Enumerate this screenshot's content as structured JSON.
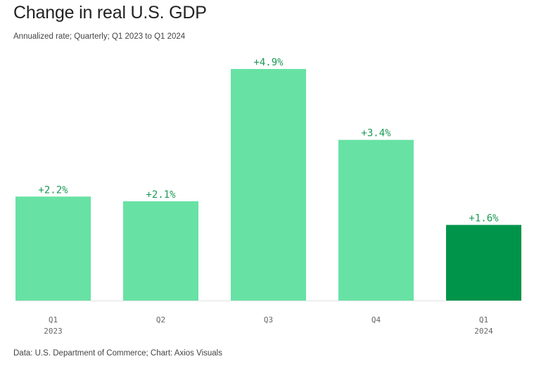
{
  "header": {
    "title": "Change in real U.S. GDP",
    "subtitle": "Annualized rate; Quarterly; Q1 2023 to Q1 2024"
  },
  "footer": {
    "source": "Data: U.S. Department of Commerce; Chart: Axios Visuals"
  },
  "colors": {
    "bar_default": "#67e2a4",
    "bar_highlight": "#00944a",
    "label_text": "#1a9a55",
    "axis_line": "#e3e3e3"
  },
  "chart_data": {
    "type": "bar",
    "categories": [
      "Q1",
      "Q2",
      "Q3",
      "Q4",
      "Q1"
    ],
    "category_years": [
      "2023",
      "",
      "",
      "",
      "2024"
    ],
    "values": [
      2.2,
      2.1,
      4.9,
      3.4,
      1.6
    ],
    "data_labels": [
      "+2.2%",
      "+2.1%",
      "+4.9%",
      "+3.4%",
      "+1.6%"
    ],
    "highlight_index": 4,
    "title": "Change in real U.S. GDP",
    "subtitle": "Annualized rate; Quarterly; Q1 2023 to Q1 2024",
    "xlabel": "",
    "ylabel": "",
    "ylim": [
      0,
      4.9
    ],
    "grid": false,
    "legend": "none"
  }
}
